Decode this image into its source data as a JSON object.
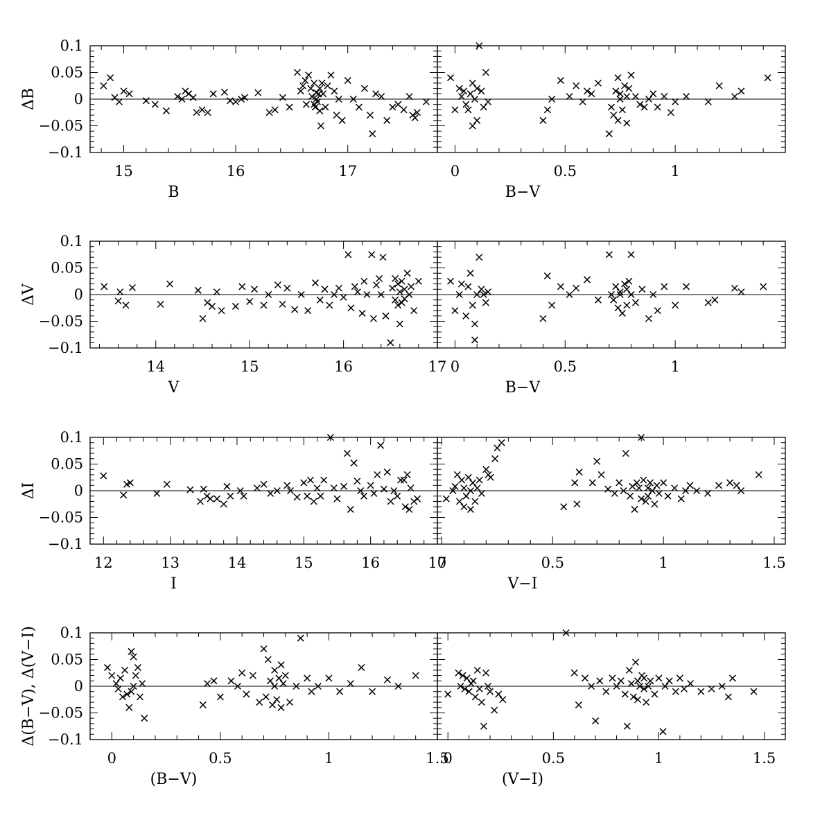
{
  "chart_data": [
    {
      "type": "scatter",
      "xlabel": "B",
      "ylabel": "ΔB",
      "xlim": [
        14.7,
        17.8
      ],
      "ylim": [
        -0.1,
        0.1
      ],
      "xticks": [
        "15",
        "16",
        "17"
      ],
      "xtick_values": [
        15,
        16,
        17
      ],
      "yticks": [
        "0.1",
        "0.05",
        "0",
        "−0.05",
        "−0.1"
      ],
      "ytick_values": [
        0.1,
        0.05,
        0,
        -0.05,
        -0.1
      ],
      "x": [
        14.82,
        14.88,
        14.92,
        14.96,
        15.0,
        15.05,
        15.2,
        15.28,
        15.38,
        15.48,
        15.52,
        15.55,
        15.58,
        15.62,
        15.65,
        15.7,
        15.75,
        15.8,
        15.9,
        15.95,
        16.0,
        16.05,
        16.08,
        16.2,
        16.3,
        16.35,
        16.42,
        16.48,
        16.55,
        16.58,
        16.6,
        16.62,
        16.63,
        16.65,
        16.67,
        16.68,
        16.7,
        16.7,
        16.71,
        16.72,
        16.72,
        16.73,
        16.74,
        16.75,
        16.75,
        16.76,
        16.77,
        16.78,
        16.8,
        16.82,
        16.85,
        16.88,
        16.9,
        16.92,
        16.95,
        17.0,
        17.05,
        17.1,
        17.15,
        17.2,
        17.22,
        17.25,
        17.3,
        17.35,
        17.4,
        17.45,
        17.5,
        17.55,
        17.58,
        17.6,
        17.62,
        17.7
      ],
      "y": [
        0.025,
        0.04,
        0.003,
        -0.005,
        0.015,
        0.01,
        -0.003,
        -0.01,
        -0.022,
        0.005,
        0.0,
        0.015,
        0.01,
        0.003,
        -0.025,
        -0.02,
        -0.025,
        0.01,
        0.013,
        -0.003,
        -0.005,
        0.0,
        0.003,
        0.012,
        -0.025,
        -0.02,
        0.003,
        -0.015,
        0.05,
        0.015,
        0.025,
        0.035,
        -0.01,
        0.045,
        0.02,
        0.005,
        -0.01,
        0.03,
        -0.015,
        0.012,
        0.0,
        -0.005,
        0.01,
        0.02,
        -0.022,
        -0.05,
        0.03,
        0.01,
        -0.015,
        0.025,
        0.045,
        0.015,
        -0.03,
        0.0,
        -0.04,
        0.035,
        0.0,
        -0.015,
        0.02,
        -0.03,
        -0.065,
        0.01,
        0.005,
        -0.04,
        -0.015,
        -0.01,
        -0.02,
        0.005,
        -0.03,
        -0.035,
        -0.025,
        -0.005
      ]
    },
    {
      "type": "scatter",
      "xlabel": "B−V",
      "ylabel": "",
      "xlim": [
        -0.08,
        1.5
      ],
      "ylim": [
        -0.1,
        0.1
      ],
      "xticks": [
        "0",
        "0.5",
        "1"
      ],
      "xtick_values": [
        0,
        0.5,
        1
      ],
      "yticks": [],
      "ytick_values": [
        0.1,
        0.05,
        0,
        -0.05,
        -0.1
      ],
      "x": [
        -0.02,
        0.0,
        0.02,
        0.03,
        0.04,
        0.05,
        0.06,
        0.07,
        0.08,
        0.08,
        0.09,
        0.1,
        0.1,
        0.11,
        0.12,
        0.13,
        0.14,
        0.15,
        0.4,
        0.42,
        0.44,
        0.48,
        0.52,
        0.55,
        0.58,
        0.6,
        0.62,
        0.65,
        0.7,
        0.71,
        0.72,
        0.73,
        0.74,
        0.74,
        0.75,
        0.75,
        0.76,
        0.77,
        0.78,
        0.78,
        0.79,
        0.8,
        0.82,
        0.84,
        0.86,
        0.88,
        0.9,
        0.92,
        0.95,
        0.98,
        1.0,
        1.05,
        1.15,
        1.2,
        1.27,
        1.3,
        1.42
      ],
      "y": [
        0.04,
        -0.02,
        0.02,
        0.005,
        0.015,
        -0.01,
        -0.02,
        0.01,
        0.03,
        -0.05,
        0.0,
        0.02,
        -0.04,
        0.1,
        0.015,
        -0.015,
        0.05,
        -0.005,
        -0.04,
        -0.02,
        0.0,
        0.035,
        0.005,
        0.025,
        -0.005,
        0.015,
        0.01,
        0.03,
        -0.065,
        -0.015,
        -0.03,
        0.015,
        0.04,
        -0.04,
        0.0,
        0.01,
        -0.02,
        0.025,
        0.005,
        -0.045,
        0.02,
        0.045,
        0.005,
        -0.01,
        -0.015,
        0.0,
        0.01,
        -0.015,
        0.005,
        -0.025,
        -0.005,
        0.005,
        -0.005,
        0.025,
        0.005,
        0.015,
        0.04
      ]
    },
    {
      "type": "scatter",
      "xlabel": "V",
      "ylabel": "ΔV",
      "xlim": [
        13.3,
        17.0
      ],
      "ylim": [
        -0.1,
        0.1
      ],
      "xticks": [
        "14",
        "15",
        "16",
        "17"
      ],
      "xtick_values": [
        14,
        15,
        16,
        17
      ],
      "yticks": [
        "0.1",
        "0.05",
        "0",
        "−0.05",
        "−0.1"
      ],
      "ytick_values": [
        0.1,
        0.05,
        0,
        -0.05,
        -0.1
      ],
      "x": [
        13.45,
        13.6,
        13.62,
        13.68,
        13.75,
        14.05,
        14.15,
        14.45,
        14.5,
        14.55,
        14.6,
        14.65,
        14.7,
        14.85,
        14.92,
        15.0,
        15.05,
        15.15,
        15.2,
        15.3,
        15.35,
        15.4,
        15.48,
        15.55,
        15.62,
        15.7,
        15.75,
        15.8,
        15.85,
        15.9,
        15.95,
        16.0,
        16.05,
        16.08,
        16.12,
        16.15,
        16.2,
        16.22,
        16.25,
        16.3,
        16.32,
        16.35,
        16.38,
        16.4,
        16.42,
        16.45,
        16.5,
        16.52,
        16.55,
        16.55,
        16.58,
        16.58,
        16.6,
        16.6,
        16.62,
        16.62,
        16.65,
        16.65,
        16.68,
        16.7,
        16.72,
        16.75,
        16.8
      ],
      "y": [
        0.015,
        -0.012,
        0.005,
        -0.02,
        0.013,
        -0.018,
        0.02,
        0.008,
        -0.045,
        -0.015,
        -0.022,
        0.005,
        -0.03,
        -0.022,
        0.015,
        -0.013,
        0.01,
        -0.02,
        0.0,
        0.018,
        -0.018,
        0.012,
        -0.028,
        0.0,
        -0.03,
        0.022,
        -0.01,
        0.01,
        -0.02,
        0.0,
        0.012,
        -0.005,
        0.075,
        -0.025,
        0.015,
        0.005,
        -0.035,
        0.025,
        0.0,
        0.075,
        -0.045,
        0.018,
        0.03,
        0.0,
        0.07,
        -0.04,
        -0.09,
        0.012,
        -0.01,
        0.03,
        -0.02,
        0.02,
        -0.055,
        0.005,
        -0.015,
        0.025,
        0.01,
        -0.008,
        0.04,
        0.0,
        0.015,
        -0.03,
        0.025
      ]
    },
    {
      "type": "scatter",
      "xlabel": "B−V",
      "ylabel": "",
      "xlim": [
        -0.08,
        1.5
      ],
      "ylim": [
        -0.1,
        0.1
      ],
      "xticks": [
        "0",
        "0.5",
        "1"
      ],
      "xtick_values": [
        0,
        0.5,
        1
      ],
      "yticks": [],
      "ytick_values": [
        0.1,
        0.05,
        0,
        -0.05,
        -0.1
      ],
      "x": [
        -0.02,
        0.0,
        0.02,
        0.03,
        0.05,
        0.06,
        0.07,
        0.08,
        0.09,
        0.09,
        0.1,
        0.11,
        0.12,
        0.13,
        0.14,
        0.15,
        0.4,
        0.42,
        0.44,
        0.48,
        0.52,
        0.55,
        0.6,
        0.65,
        0.7,
        0.71,
        0.72,
        0.73,
        0.74,
        0.75,
        0.75,
        0.76,
        0.77,
        0.78,
        0.78,
        0.79,
        0.8,
        0.8,
        0.82,
        0.85,
        0.88,
        0.9,
        0.92,
        0.95,
        1.0,
        1.05,
        1.15,
        1.18,
        1.27,
        1.3,
        1.4
      ],
      "y": [
        0.025,
        -0.03,
        0.0,
        0.02,
        -0.04,
        0.015,
        0.04,
        -0.02,
        -0.055,
        -0.085,
        0.0,
        0.07,
        0.01,
        0.0,
        -0.015,
        0.005,
        -0.045,
        0.035,
        -0.02,
        0.015,
        0.0,
        0.012,
        0.028,
        -0.01,
        0.075,
        0.0,
        -0.01,
        0.015,
        -0.025,
        0.005,
        0.0,
        -0.035,
        0.02,
        0.01,
        -0.02,
        0.025,
        0.075,
        0.0,
        -0.015,
        0.01,
        -0.045,
        0.0,
        -0.03,
        0.015,
        -0.02,
        0.015,
        -0.015,
        -0.01,
        0.012,
        0.005,
        0.015
      ]
    },
    {
      "type": "scatter",
      "xlabel": "I",
      "ylabel": "ΔI",
      "xlim": [
        11.8,
        17.0
      ],
      "ylim": [
        -0.1,
        0.1
      ],
      "xticks": [
        "12",
        "13",
        "14",
        "15",
        "16",
        "17"
      ],
      "xtick_values": [
        12,
        13,
        14,
        15,
        16,
        17
      ],
      "yticks": [
        "0.1",
        "0.05",
        "0",
        "−0.05",
        "−0.1"
      ],
      "ytick_values": [
        0.1,
        0.05,
        0,
        -0.05,
        -0.1
      ],
      "x": [
        12.0,
        12.3,
        12.35,
        12.4,
        12.8,
        12.95,
        13.3,
        13.45,
        13.5,
        13.55,
        13.6,
        13.7,
        13.8,
        13.85,
        13.9,
        14.05,
        14.1,
        14.3,
        14.4,
        14.5,
        14.6,
        14.75,
        14.8,
        14.9,
        15.0,
        15.05,
        15.1,
        15.15,
        15.2,
        15.25,
        15.3,
        15.4,
        15.45,
        15.5,
        15.6,
        15.65,
        15.7,
        15.75,
        15.8,
        15.85,
        15.9,
        16.0,
        16.05,
        16.1,
        16.15,
        16.2,
        16.25,
        16.3,
        16.35,
        16.4,
        16.45,
        16.5,
        16.52,
        16.55,
        16.58,
        16.6,
        16.65,
        16.7
      ],
      "y": [
        0.028,
        -0.008,
        0.012,
        0.015,
        -0.005,
        0.012,
        0.002,
        -0.02,
        0.003,
        -0.01,
        -0.015,
        -0.015,
        -0.025,
        0.008,
        -0.01,
        0.0,
        -0.01,
        0.005,
        0.012,
        -0.005,
        0.0,
        0.01,
        0.0,
        -0.012,
        0.015,
        -0.01,
        0.02,
        -0.02,
        0.005,
        -0.01,
        0.02,
        0.1,
        0.005,
        -0.015,
        0.008,
        0.07,
        -0.035,
        0.052,
        0.018,
        0.0,
        -0.01,
        0.01,
        -0.005,
        0.03,
        0.085,
        0.003,
        0.035,
        -0.02,
        0.0,
        -0.01,
        0.02,
        0.02,
        -0.03,
        0.03,
        -0.035,
        0.005,
        -0.02,
        -0.015
      ]
    },
    {
      "type": "scatter",
      "xlabel": "V−I",
      "ylabel": "",
      "xlim": [
        -0.02,
        1.55
      ],
      "ylim": [
        -0.1,
        0.1
      ],
      "xticks": [
        "0",
        "0.5",
        "1",
        "1.5"
      ],
      "xtick_values": [
        0,
        0.5,
        1,
        1.5
      ],
      "yticks": [],
      "ytick_values": [
        0.1,
        0.05,
        0,
        -0.05,
        -0.1
      ],
      "x": [
        0.02,
        0.05,
        0.06,
        0.07,
        0.08,
        0.09,
        0.1,
        0.1,
        0.11,
        0.12,
        0.13,
        0.13,
        0.14,
        0.15,
        0.16,
        0.17,
        0.18,
        0.2,
        0.21,
        0.22,
        0.24,
        0.25,
        0.27,
        0.55,
        0.6,
        0.61,
        0.62,
        0.68,
        0.7,
        0.72,
        0.75,
        0.78,
        0.8,
        0.82,
        0.83,
        0.85,
        0.86,
        0.87,
        0.88,
        0.89,
        0.9,
        0.9,
        0.91,
        0.92,
        0.93,
        0.93,
        0.94,
        0.95,
        0.96,
        0.97,
        0.98,
        1.0,
        1.02,
        1.05,
        1.08,
        1.1,
        1.12,
        1.15,
        1.2,
        1.25,
        1.3,
        1.33,
        1.35,
        1.43
      ],
      "y": [
        -0.015,
        0.0,
        0.008,
        0.03,
        -0.02,
        0.02,
        -0.03,
        0.005,
        -0.01,
        0.025,
        0.0,
        -0.035,
        0.015,
        -0.02,
        0.005,
        0.02,
        -0.005,
        0.04,
        0.03,
        0.025,
        0.06,
        0.08,
        0.09,
        -0.03,
        0.015,
        -0.025,
        0.035,
        0.015,
        0.055,
        0.03,
        0.003,
        -0.005,
        0.015,
        0.0,
        0.07,
        -0.01,
        0.008,
        -0.035,
        0.015,
        0.005,
        -0.015,
        0.1,
        0.02,
        -0.02,
        0.005,
        -0.01,
        0.015,
        0.0,
        -0.025,
        0.01,
        -0.005,
        0.015,
        -0.01,
        0.005,
        -0.015,
        0.0,
        0.01,
        0.0,
        -0.005,
        0.01,
        0.015,
        0.01,
        0.0,
        0.03
      ]
    },
    {
      "type": "scatter",
      "xlabel": "(B−V)",
      "ylabel": "Δ(B−V), Δ(V−I)",
      "xlim": [
        -0.1,
        1.5
      ],
      "ylim": [
        -0.1,
        0.1
      ],
      "xticks": [
        "0",
        "0.5",
        "1",
        "1.5"
      ],
      "xtick_values": [
        0,
        0.5,
        1,
        1.5
      ],
      "yticks": [
        "0.1",
        "0.05",
        "0",
        "−0.05",
        "−0.1"
      ],
      "ytick_values": [
        0.1,
        0.05,
        0,
        -0.05,
        -0.1
      ],
      "x": [
        -0.02,
        0.0,
        0.02,
        0.03,
        0.04,
        0.05,
        0.06,
        0.07,
        0.08,
        0.09,
        0.09,
        0.1,
        0.1,
        0.11,
        0.12,
        0.13,
        0.14,
        0.15,
        0.42,
        0.44,
        0.47,
        0.5,
        0.55,
        0.58,
        0.6,
        0.62,
        0.65,
        0.68,
        0.7,
        0.71,
        0.72,
        0.73,
        0.74,
        0.75,
        0.75,
        0.76,
        0.77,
        0.78,
        0.78,
        0.79,
        0.8,
        0.82,
        0.85,
        0.87,
        0.9,
        0.92,
        0.95,
        1.0,
        1.05,
        1.1,
        1.15,
        1.2,
        1.27,
        1.32,
        1.4
      ],
      "y": [
        0.035,
        0.02,
        0.005,
        -0.005,
        0.015,
        -0.02,
        0.03,
        -0.015,
        -0.04,
        0.065,
        -0.01,
        0.055,
        0.0,
        0.02,
        0.035,
        -0.02,
        0.005,
        -0.06,
        -0.035,
        0.005,
        0.01,
        -0.02,
        0.01,
        0.0,
        0.025,
        -0.015,
        0.02,
        -0.03,
        0.07,
        -0.02,
        0.05,
        0.01,
        -0.035,
        0.03,
        0.0,
        -0.025,
        0.015,
        0.04,
        -0.04,
        0.005,
        0.02,
        -0.03,
        0.0,
        0.09,
        0.015,
        -0.01,
        0.0,
        0.015,
        -0.01,
        0.005,
        0.035,
        -0.01,
        0.012,
        0.0,
        0.02
      ]
    },
    {
      "type": "scatter",
      "xlabel": "(V−I)",
      "ylabel": "",
      "xlim": [
        -0.05,
        1.6
      ],
      "ylim": [
        -0.1,
        0.1
      ],
      "xticks": [
        "0",
        "0.5",
        "1",
        "1.5"
      ],
      "xtick_values": [
        0,
        0.5,
        1,
        1.5
      ],
      "yticks": [],
      "ytick_values": [
        0.1,
        0.05,
        0,
        -0.05,
        -0.1
      ],
      "x": [
        0.0,
        0.05,
        0.06,
        0.07,
        0.08,
        0.09,
        0.1,
        0.11,
        0.12,
        0.13,
        0.14,
        0.15,
        0.16,
        0.17,
        0.18,
        0.19,
        0.2,
        0.22,
        0.24,
        0.26,
        0.56,
        0.6,
        0.62,
        0.65,
        0.68,
        0.7,
        0.72,
        0.75,
        0.78,
        0.8,
        0.82,
        0.84,
        0.85,
        0.86,
        0.87,
        0.88,
        0.89,
        0.9,
        0.9,
        0.91,
        0.92,
        0.93,
        0.93,
        0.94,
        0.95,
        0.96,
        0.98,
        1.0,
        1.02,
        1.03,
        1.05,
        1.08,
        1.1,
        1.12,
        1.15,
        1.2,
        1.25,
        1.3,
        1.33,
        1.35,
        1.45
      ],
      "y": [
        -0.015,
        0.025,
        0.0,
        0.02,
        -0.005,
        0.015,
        -0.01,
        0.005,
        0.01,
        -0.02,
        0.03,
        -0.005,
        -0.03,
        -0.075,
        0.025,
        0.0,
        -0.01,
        -0.045,
        -0.015,
        -0.025,
        0.1,
        0.025,
        -0.035,
        0.015,
        0.0,
        -0.065,
        0.01,
        -0.01,
        0.015,
        0.0,
        0.01,
        -0.015,
        -0.075,
        0.03,
        0.005,
        -0.02,
        0.045,
        0.01,
        -0.025,
        0.0,
        0.02,
        -0.005,
        0.015,
        -0.03,
        0.0,
        0.01,
        -0.015,
        0.015,
        -0.085,
        0.0,
        0.01,
        -0.01,
        0.015,
        -0.005,
        0.005,
        -0.01,
        -0.005,
        0.0,
        -0.02,
        0.015,
        -0.01
      ]
    }
  ]
}
